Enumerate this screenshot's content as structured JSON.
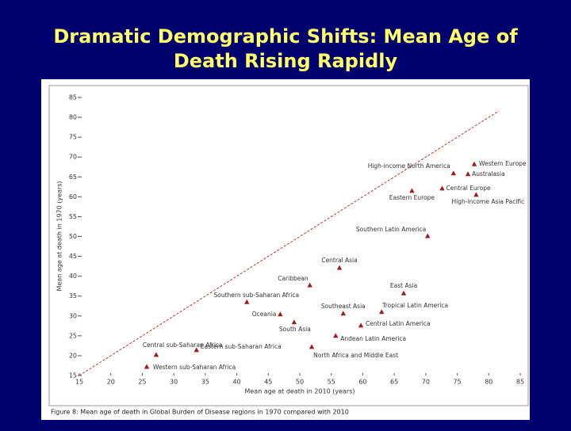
{
  "chart_data": {
    "type": "scatter",
    "title": "Dramatic Demographic Shifts: Mean Age of",
    "title_line2": "Death Rising Rapidly",
    "x_label": "Mean age at death in 2010 (years)",
    "y_label": "Mean age at death in 1970 (years)",
    "caption": "Figure 8: Mean age of death in Global Burden of Disease regions in 1970 compared with 2010",
    "xlim": [
      15,
      85
    ],
    "ylim": [
      15,
      85
    ],
    "xticks": [
      15,
      20,
      25,
      30,
      35,
      40,
      45,
      50,
      55,
      60,
      65,
      70,
      75,
      80,
      85
    ],
    "yticks": [
      15,
      20,
      25,
      30,
      35,
      40,
      45,
      50,
      55,
      60,
      65,
      70,
      75,
      80,
      85
    ],
    "diagonal": [
      15,
      81.6
    ],
    "color": "#a01c1c",
    "labels": [
      "Western Europe",
      "High-income North America",
      "Australasia",
      "Central Europe",
      "Eastern Europe",
      "High-income Asia Pacific",
      "Southern Latin America",
      "Central Asia",
      "Caribbean",
      "East Asia",
      "Southern sub-Saharan Africa",
      "Southeast Asia",
      "Tropical Latin America",
      "Oceania",
      "South Asia",
      "Central Latin America",
      "Andean Latin America",
      "Central sub-Saharan Africa",
      "Eastern sub-Saharan Africa",
      "North Africa and Middle East",
      "Western sub-Saharan Africa"
    ],
    "x": [
      77.7,
      74.4,
      76.7,
      72.6,
      67.8,
      78.0,
      70.3,
      56.3,
      51.6,
      66.5,
      41.6,
      56.9,
      63.0,
      46.9,
      49.1,
      59.7,
      55.7,
      27.2,
      33.6,
      51.9,
      25.7
    ],
    "y": [
      68.2,
      65.9,
      65.7,
      62.1,
      61.5,
      60.5,
      50.1,
      42.1,
      37.7,
      35.7,
      33.5,
      30.6,
      31.0,
      30.4,
      28.4,
      27.6,
      25.0,
      20.2,
      21.4,
      22.2,
      17.2
    ]
  }
}
